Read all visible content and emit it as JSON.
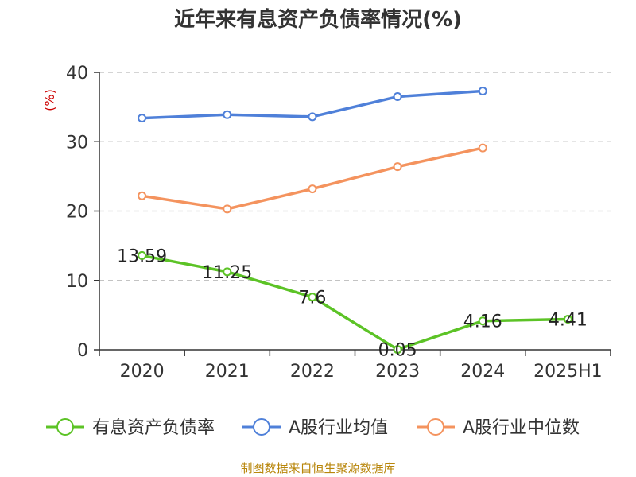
{
  "chart_data": {
    "type": "line",
    "title": "近年来有息资产负债率情况(%)",
    "unit_label": "(%)",
    "categories": [
      "2020",
      "2021",
      "2022",
      "2023",
      "2024",
      "2025H1"
    ],
    "ylim": [
      0,
      40
    ],
    "yticks": [
      "0",
      "10",
      "20",
      "30",
      "40"
    ],
    "grid": true,
    "legend_position": "bottom",
    "series": [
      {
        "name": "有息资产负债率",
        "color": "#5cc326",
        "values": [
          13.59,
          11.25,
          7.6,
          0.05,
          4.16,
          4.41
        ],
        "labels": [
          "13.59",
          "11.25",
          "7.6",
          "0.05",
          "4.16",
          "4.41"
        ]
      },
      {
        "name": "A股行业均值",
        "color": "#4f80d9",
        "values": [
          33.4,
          33.9,
          33.6,
          36.5,
          37.3,
          null
        ]
      },
      {
        "name": "A股行业中位数",
        "color": "#f4935e",
        "values": [
          22.2,
          20.3,
          23.2,
          26.4,
          29.1,
          null
        ]
      }
    ],
    "source": "制图数据来自恒生聚源数据库"
  }
}
